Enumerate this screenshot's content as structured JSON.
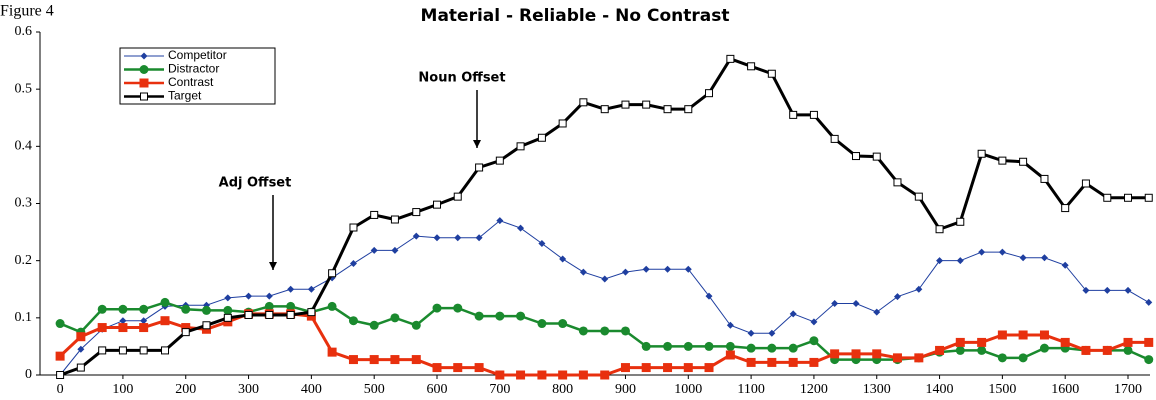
{
  "chart_data": {
    "type": "line",
    "figure_label": "Figure 4",
    "title": "Material - Reliable - No Contrast",
    "annotations": [
      "Adj Offset",
      "Noun Offset"
    ],
    "x": [
      0,
      33,
      67,
      100,
      133,
      167,
      200,
      233,
      267,
      300,
      333,
      367,
      400,
      433,
      467,
      500,
      533,
      567,
      600,
      633,
      667,
      700,
      733,
      767,
      800,
      833,
      867,
      900,
      933,
      967,
      1000,
      1033,
      1067,
      1100,
      1133,
      1167,
      1200,
      1233,
      1267,
      1300,
      1333,
      1367,
      1400,
      1433,
      1467,
      1500,
      1533,
      1567,
      1600,
      1633,
      1667,
      1700,
      1733
    ],
    "series": [
      {
        "name": "Competitor",
        "color": "#1f3fa0",
        "marker": "diamond",
        "width": 1,
        "values": [
          0,
          0.045,
          0.08,
          0.095,
          0.095,
          0.12,
          0.122,
          0.122,
          0.135,
          0.138,
          0.138,
          0.15,
          0.15,
          0.17,
          0.195,
          0.218,
          0.218,
          0.243,
          0.24,
          0.24,
          0.24,
          0.27,
          0.257,
          0.23,
          0.203,
          0.18,
          0.168,
          0.18,
          0.185,
          0.185,
          0.185,
          0.138,
          0.087,
          0.073,
          0.073,
          0.107,
          0.093,
          0.125,
          0.125,
          0.11,
          0.137,
          0.15,
          0.2,
          0.2,
          0.215,
          0.215,
          0.205,
          0.205,
          0.192,
          0.148,
          0.148,
          0.148,
          0.127
        ]
      },
      {
        "name": "Distractor",
        "color": "#1a8a2e",
        "marker": "circle",
        "width": 2.5,
        "values": [
          0.09,
          0.075,
          0.115,
          0.115,
          0.115,
          0.127,
          0.115,
          0.113,
          0.113,
          0.11,
          0.12,
          0.12,
          0.11,
          0.12,
          0.095,
          0.087,
          0.1,
          0.087,
          0.117,
          0.117,
          0.103,
          0.103,
          0.103,
          0.09,
          0.09,
          0.077,
          0.077,
          0.077,
          0.05,
          0.05,
          0.05,
          0.05,
          0.05,
          0.047,
          0.047,
          0.047,
          0.06,
          0.027,
          0.027,
          0.027,
          0.027,
          0.03,
          0.04,
          0.043,
          0.043,
          0.03,
          0.03,
          0.047,
          0.047,
          0.043,
          0.043,
          0.043,
          0.027
        ]
      },
      {
        "name": "Contrast",
        "color": "#e8300e",
        "marker": "square",
        "width": 3,
        "values": [
          0.033,
          0.067,
          0.083,
          0.083,
          0.083,
          0.095,
          0.083,
          0.08,
          0.093,
          0.107,
          0.107,
          0.107,
          0.103,
          0.04,
          0.027,
          0.027,
          0.027,
          0.027,
          0.013,
          0.013,
          0.013,
          0,
          0,
          0,
          0,
          0,
          0,
          0.013,
          0.013,
          0.013,
          0.013,
          0.013,
          0.035,
          0.022,
          0.022,
          0.022,
          0.022,
          0.037,
          0.037,
          0.037,
          0.03,
          0.03,
          0.043,
          0.057,
          0.057,
          0.07,
          0.07,
          0.07,
          0.057,
          0.043,
          0.043,
          0.057,
          0.057
        ]
      },
      {
        "name": "Target",
        "color": "#000000",
        "marker": "open-square",
        "width": 3,
        "values": [
          0,
          0.013,
          0.043,
          0.043,
          0.043,
          0.043,
          0.075,
          0.087,
          0.1,
          0.105,
          0.105,
          0.105,
          0.11,
          0.178,
          0.258,
          0.28,
          0.272,
          0.285,
          0.298,
          0.312,
          0.363,
          0.375,
          0.4,
          0.415,
          0.44,
          0.477,
          0.465,
          0.473,
          0.473,
          0.465,
          0.465,
          0.493,
          0.553,
          0.54,
          0.527,
          0.455,
          0.455,
          0.413,
          0.383,
          0.382,
          0.337,
          0.312,
          0.255,
          0.268,
          0.387,
          0.375,
          0.373,
          0.343,
          0.292,
          0.335,
          0.31,
          0.31,
          0.31
        ]
      }
    ],
    "xlim": [
      -32,
      1735
    ],
    "ylim": [
      0,
      0.6
    ],
    "xticks": [
      0,
      100,
      200,
      300,
      400,
      500,
      600,
      700,
      800,
      900,
      1000,
      1100,
      1200,
      1300,
      1400,
      1500,
      1600,
      1700
    ],
    "yticks": [
      0,
      0.1,
      0.2,
      0.3,
      0.4,
      0.5,
      0.6
    ],
    "grid": false,
    "legend": "upper left"
  }
}
